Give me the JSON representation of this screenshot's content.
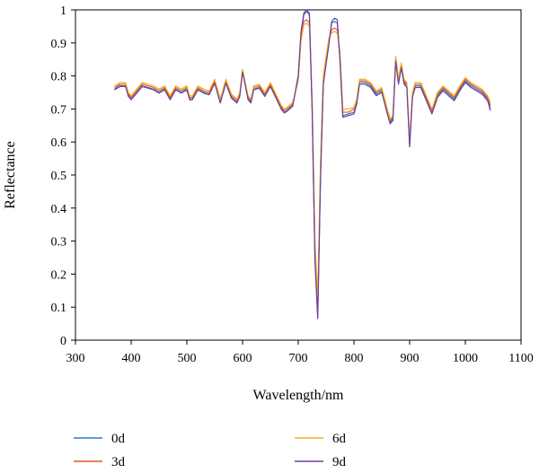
{
  "chart_data": {
    "type": "line",
    "title": "",
    "xlabel": "Wavelength/nm",
    "ylabel": "Reflectance",
    "xlim": [
      300,
      1100
    ],
    "ylim": [
      0,
      1
    ],
    "xticks": [
      "300",
      "400",
      "500",
      "600",
      "700",
      "800",
      "900",
      "1000",
      "1100"
    ],
    "yticks": [
      "0",
      "0.1",
      "0.2",
      "0.3",
      "0.4",
      "0.5",
      "0.6",
      "0.7",
      "0.8",
      "0.9",
      "1"
    ],
    "grid": false,
    "legend_position": "bottom",
    "x": [
      370,
      380,
      390,
      395,
      400,
      410,
      420,
      430,
      440,
      450,
      460,
      470,
      480,
      490,
      500,
      505,
      510,
      520,
      530,
      540,
      550,
      560,
      570,
      580,
      590,
      595,
      600,
      610,
      615,
      620,
      630,
      640,
      650,
      660,
      670,
      675,
      680,
      690,
      700,
      705,
      710,
      715,
      720,
      725,
      730,
      735,
      740,
      745,
      750,
      755,
      760,
      765,
      770,
      775,
      780,
      790,
      800,
      805,
      810,
      815,
      820,
      830,
      840,
      850,
      860,
      865,
      870,
      875,
      880,
      885,
      890,
      895,
      900,
      905,
      910,
      920,
      930,
      940,
      950,
      960,
      970,
      980,
      990,
      1000,
      1010,
      1020,
      1030,
      1040,
      1045
    ],
    "series": [
      {
        "name": "0d",
        "color": "#2e7dc7",
        "values": [
          0.76,
          0.77,
          0.77,
          0.74,
          0.73,
          0.75,
          0.77,
          0.765,
          0.76,
          0.75,
          0.76,
          0.73,
          0.76,
          0.75,
          0.76,
          0.73,
          0.73,
          0.76,
          0.75,
          0.745,
          0.78,
          0.72,
          0.78,
          0.735,
          0.72,
          0.74,
          0.815,
          0.73,
          0.72,
          0.76,
          0.765,
          0.74,
          0.77,
          0.735,
          0.7,
          0.69,
          0.695,
          0.71,
          0.8,
          0.93,
          0.985,
          0.995,
          0.985,
          0.7,
          0.25,
          0.07,
          0.5,
          0.78,
          0.84,
          0.9,
          0.96,
          0.965,
          0.96,
          0.85,
          0.68,
          0.685,
          0.69,
          0.72,
          0.78,
          0.78,
          0.78,
          0.77,
          0.745,
          0.755,
          0.69,
          0.66,
          0.67,
          0.85,
          0.78,
          0.83,
          0.78,
          0.77,
          0.59,
          0.74,
          0.77,
          0.77,
          0.73,
          0.69,
          0.74,
          0.76,
          0.745,
          0.73,
          0.76,
          0.785,
          0.77,
          0.76,
          0.75,
          0.73,
          0.7
        ]
      },
      {
        "name": "3d",
        "color": "#e8522c",
        "values": [
          0.765,
          0.775,
          0.775,
          0.745,
          0.735,
          0.755,
          0.775,
          0.77,
          0.765,
          0.755,
          0.765,
          0.735,
          0.765,
          0.755,
          0.765,
          0.735,
          0.735,
          0.765,
          0.755,
          0.75,
          0.785,
          0.725,
          0.785,
          0.74,
          0.725,
          0.745,
          0.815,
          0.735,
          0.725,
          0.765,
          0.77,
          0.745,
          0.775,
          0.74,
          0.705,
          0.695,
          0.7,
          0.715,
          0.79,
          0.915,
          0.965,
          0.97,
          0.96,
          0.72,
          0.28,
          0.1,
          0.52,
          0.79,
          0.85,
          0.91,
          0.94,
          0.945,
          0.94,
          0.86,
          0.69,
          0.69,
          0.7,
          0.725,
          0.785,
          0.785,
          0.785,
          0.775,
          0.75,
          0.76,
          0.695,
          0.665,
          0.675,
          0.855,
          0.785,
          0.835,
          0.785,
          0.775,
          0.595,
          0.745,
          0.775,
          0.775,
          0.735,
          0.695,
          0.745,
          0.765,
          0.75,
          0.735,
          0.765,
          0.79,
          0.775,
          0.765,
          0.755,
          0.735,
          0.71
        ]
      },
      {
        "name": "6d",
        "color": "#f2b21b",
        "values": [
          0.77,
          0.78,
          0.78,
          0.75,
          0.74,
          0.76,
          0.78,
          0.775,
          0.77,
          0.76,
          0.77,
          0.74,
          0.77,
          0.76,
          0.77,
          0.74,
          0.74,
          0.77,
          0.76,
          0.755,
          0.79,
          0.73,
          0.79,
          0.745,
          0.73,
          0.75,
          0.82,
          0.74,
          0.73,
          0.77,
          0.775,
          0.75,
          0.78,
          0.745,
          0.71,
          0.7,
          0.705,
          0.72,
          0.785,
          0.905,
          0.955,
          0.96,
          0.95,
          0.73,
          0.3,
          0.13,
          0.54,
          0.8,
          0.86,
          0.915,
          0.93,
          0.935,
          0.93,
          0.87,
          0.7,
          0.7,
          0.705,
          0.73,
          0.79,
          0.79,
          0.79,
          0.78,
          0.755,
          0.765,
          0.7,
          0.67,
          0.68,
          0.86,
          0.79,
          0.84,
          0.79,
          0.78,
          0.6,
          0.75,
          0.78,
          0.78,
          0.74,
          0.7,
          0.75,
          0.77,
          0.755,
          0.74,
          0.77,
          0.795,
          0.78,
          0.77,
          0.76,
          0.74,
          0.72
        ]
      },
      {
        "name": "9d",
        "color": "#6b3fa0",
        "values": [
          0.758,
          0.768,
          0.768,
          0.738,
          0.728,
          0.748,
          0.768,
          0.763,
          0.758,
          0.748,
          0.758,
          0.728,
          0.758,
          0.748,
          0.758,
          0.728,
          0.728,
          0.758,
          0.748,
          0.743,
          0.778,
          0.718,
          0.778,
          0.733,
          0.718,
          0.738,
          0.812,
          0.728,
          0.718,
          0.758,
          0.763,
          0.738,
          0.768,
          0.733,
          0.698,
          0.688,
          0.693,
          0.708,
          0.8,
          0.935,
          0.99,
          1.0,
          0.99,
          0.69,
          0.24,
          0.065,
          0.49,
          0.775,
          0.835,
          0.895,
          0.965,
          0.975,
          0.97,
          0.845,
          0.675,
          0.68,
          0.685,
          0.715,
          0.775,
          0.775,
          0.775,
          0.765,
          0.74,
          0.75,
          0.685,
          0.655,
          0.665,
          0.845,
          0.775,
          0.825,
          0.775,
          0.765,
          0.585,
          0.735,
          0.765,
          0.765,
          0.725,
          0.685,
          0.735,
          0.755,
          0.74,
          0.725,
          0.755,
          0.78,
          0.765,
          0.755,
          0.745,
          0.725,
          0.695
        ]
      }
    ]
  }
}
